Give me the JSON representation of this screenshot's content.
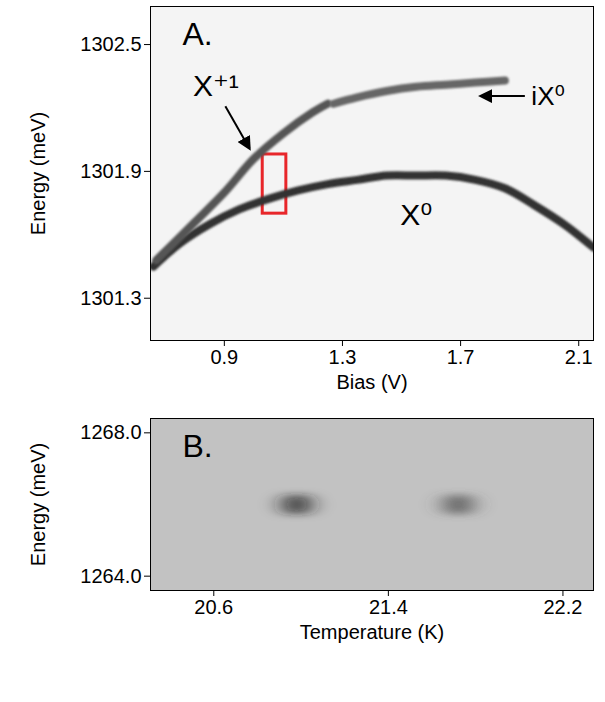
{
  "chart_data": [
    {
      "type": "line",
      "panel": "A.",
      "x_label": "Bias (V)",
      "y_label": "Energy (meV)",
      "xlim": [
        0.65,
        2.15
      ],
      "ylim": [
        1301.1,
        1302.68
      ],
      "xticks": [
        0.9,
        1.3,
        1.7,
        2.1
      ],
      "yticks": [
        1301.3,
        1301.9,
        1302.5
      ],
      "series": [
        {
          "name": "X⁰",
          "color": "#333333",
          "x": [
            0.66,
            0.75,
            0.85,
            0.95,
            1.05,
            1.15,
            1.25,
            1.35,
            1.45,
            1.55,
            1.65,
            1.75,
            1.85,
            1.95,
            2.05,
            2.15
          ],
          "values": [
            1301.45,
            1301.56,
            1301.65,
            1301.72,
            1301.77,
            1301.81,
            1301.84,
            1301.86,
            1301.88,
            1301.88,
            1301.88,
            1301.86,
            1301.82,
            1301.74,
            1301.65,
            1301.54
          ]
        },
        {
          "name": "X⁺¹",
          "color": "#555555",
          "x": [
            0.67,
            0.8,
            0.9,
            1.0,
            1.1,
            1.2,
            1.25
          ],
          "values": [
            1301.48,
            1301.66,
            1301.8,
            1301.96,
            1302.08,
            1302.18,
            1302.22
          ]
        },
        {
          "name": "iX⁰",
          "color": "#666666",
          "x": [
            1.27,
            1.35,
            1.45,
            1.55,
            1.65,
            1.75,
            1.85
          ],
          "values": [
            1302.22,
            1302.25,
            1302.28,
            1302.3,
            1302.31,
            1302.32,
            1302.33
          ]
        }
      ],
      "regions": [
        {
          "x": [
            1.03,
            1.11
          ],
          "y": [
            1301.7,
            1301.98
          ],
          "color": "#e8262a"
        }
      ]
    },
    {
      "type": "scatter",
      "panel": "B.",
      "x_label": "Temperature (K)",
      "y_label": "Energy (meV)",
      "xlim": [
        20.31,
        22.34
      ],
      "ylim": [
        1263.6,
        1268.4
      ],
      "xticks": [
        20.6,
        21.4,
        22.2
      ],
      "yticks": [
        {
          "value": 1264,
          "label": "1264.0"
        },
        {
          "value": 1268,
          "label": "1268.0"
        }
      ],
      "x": [
        20.98,
        21.72
      ],
      "values": [
        1266.0,
        1266.0
      ],
      "colors": [
        "#1a1a1a",
        "#4a4a4a"
      ]
    }
  ]
}
